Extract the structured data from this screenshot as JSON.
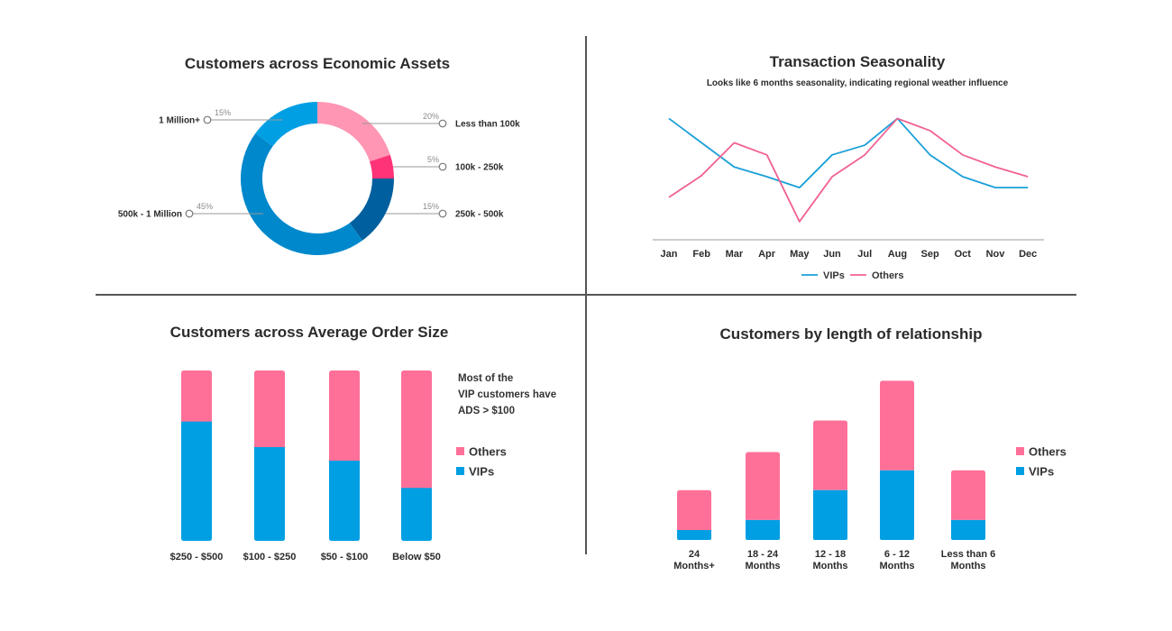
{
  "colors": {
    "pink": "#ff7099",
    "light_pink": "#ff96b4",
    "hot_pink": "#ff3377",
    "vip_blue": "#009fe3",
    "mid_blue": "#0088cc",
    "dark_blue": "#005f9e",
    "line_vip": "#1a9fd8",
    "line_others": "#f06292"
  },
  "chart_data": [
    {
      "type": "pie",
      "title": "Customers across Economic Assets",
      "slices": [
        {
          "label": "Less than 100k",
          "pct_label": "20%",
          "value": 20,
          "color": "#ff96b4"
        },
        {
          "label": "100k - 250k",
          "pct_label": "5%",
          "value": 5,
          "color": "#ff3377"
        },
        {
          "label": "250k - 500k",
          "pct_label": "15%",
          "value": 15,
          "color": "#005f9e"
        },
        {
          "label": "500k - 1 Million",
          "pct_label": "45%",
          "value": 45,
          "color": "#0088cc"
        },
        {
          "label": "1 Million+",
          "pct_label": "15%",
          "value": 15,
          "color": "#009fe3"
        }
      ]
    },
    {
      "type": "line",
      "title": "Transaction Seasonality",
      "subtitle": "Looks like 6 months seasonality, indicating regional weather influence",
      "categories": [
        "Jan",
        "Feb",
        "Mar",
        "Apr",
        "May",
        "Jun",
        "Jul",
        "Aug",
        "Sep",
        "Oct",
        "Nov",
        "Dec"
      ],
      "series": [
        {
          "name": "VIPs",
          "color": "#1a9fd8",
          "values": [
            100,
            80,
            60,
            52,
            43,
            70,
            78,
            100,
            70,
            52,
            43,
            43
          ]
        },
        {
          "name": "Others",
          "color": "#f06292",
          "values": [
            35,
            53,
            80,
            70,
            15,
            52,
            70,
            100,
            90,
            70,
            60,
            52
          ]
        }
      ],
      "ylim": [
        0,
        110
      ]
    },
    {
      "type": "bar",
      "stacked": true,
      "title": "Customers across Average Order Size",
      "categories": [
        "$250 - $500",
        "$100 - $250",
        "$50 - $100",
        "Below $50"
      ],
      "series": [
        {
          "name": "VIPs",
          "color": "#009fe3",
          "values": [
            70,
            55,
            47,
            31
          ]
        },
        {
          "name": "Others",
          "color": "#ff7099",
          "values": [
            30,
            45,
            53,
            69
          ]
        }
      ],
      "ylim": [
        0,
        100
      ],
      "note": [
        "Most of the",
        "VIP customers have",
        "ADS > $100"
      ]
    },
    {
      "type": "bar",
      "stacked": true,
      "title": "Customers by length of relationship",
      "categories": [
        [
          "24",
          "Months+"
        ],
        [
          "18 - 24",
          "Months"
        ],
        [
          "12 - 18",
          "Months"
        ],
        [
          "6 - 12",
          "Months"
        ],
        [
          "Less than 6",
          "Months"
        ]
      ],
      "series": [
        {
          "name": "VIPs",
          "color": "#009fe3",
          "values": [
            6,
            12,
            30,
            42,
            12
          ]
        },
        {
          "name": "Others",
          "color": "#ff7099",
          "values": [
            24,
            41,
            42,
            54,
            30
          ]
        }
      ],
      "ylim": [
        0,
        100
      ]
    }
  ]
}
